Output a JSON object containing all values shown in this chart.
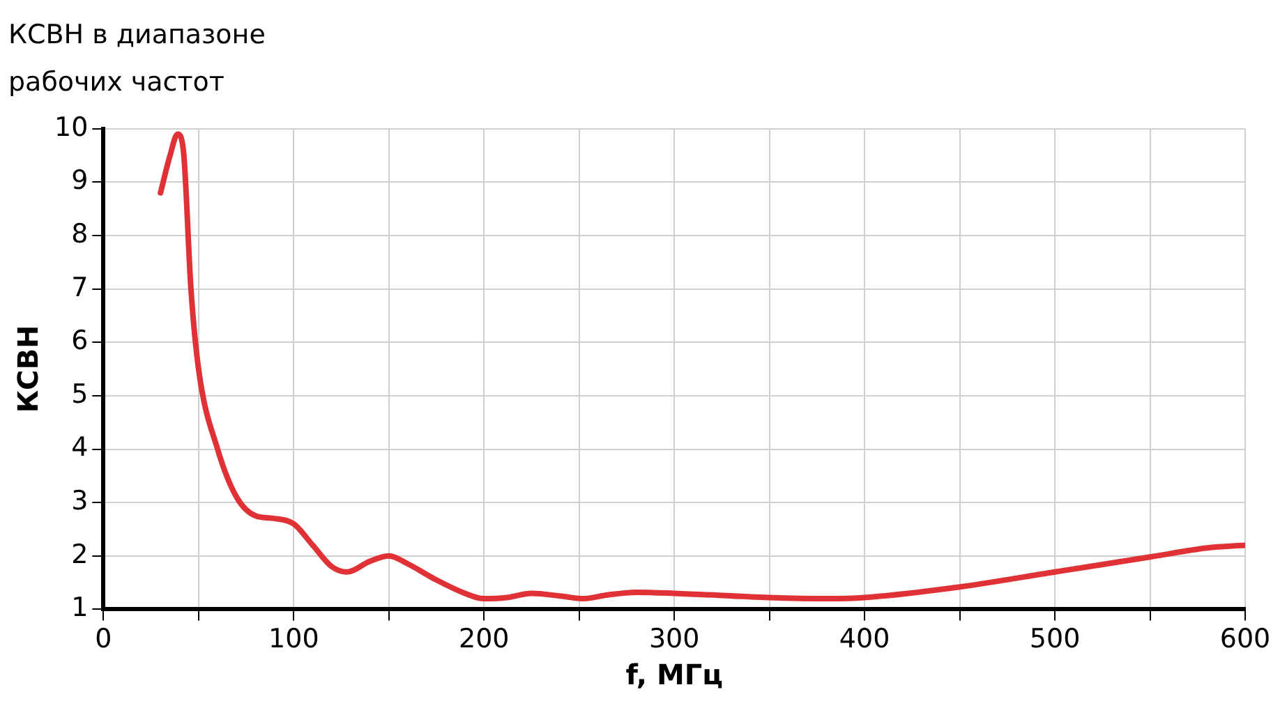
{
  "chart_data": {
    "type": "line",
    "title": "КСВН в диапазоне рабочих частот",
    "xlabel": "f, МГц",
    "ylabel": "КСВН",
    "x": [
      30,
      35,
      39,
      42,
      46,
      50,
      60,
      70,
      80,
      90,
      100,
      110,
      120,
      128,
      140,
      150,
      160,
      175,
      190,
      200,
      212,
      225,
      240,
      252,
      265,
      280,
      300,
      350,
      380,
      400,
      450,
      500,
      550,
      580,
      600
    ],
    "series": [
      {
        "color": "#e03236",
        "values": [
          8.8,
          9.5,
          9.9,
          9.6,
          7,
          5.5,
          4,
          3.1,
          2.75,
          2.7,
          2.6,
          2.2,
          1.8,
          1.7,
          1.9,
          2.0,
          1.85,
          1.55,
          1.3,
          1.2,
          1.22,
          1.3,
          1.25,
          1.2,
          1.27,
          1.32,
          1.3,
          1.22,
          1.2,
          1.22,
          1.42,
          1.7,
          1.98,
          2.15,
          2.2
        ]
      }
    ],
    "xlim": [
      0,
      600
    ],
    "xticks": [
      0,
      {
        "value": 50,
        "label": null
      },
      100,
      {
        "value": 150,
        "label": null
      },
      200,
      {
        "value": 250,
        "label": null
      },
      300,
      {
        "value": 350,
        "label": null
      },
      400,
      {
        "value": 450,
        "label": null
      },
      500,
      {
        "value": 550,
        "label": null
      },
      600
    ],
    "ylim": [
      1,
      10
    ],
    "yticks": [
      1,
      2,
      3,
      4,
      5,
      6,
      7,
      8,
      9,
      10
    ],
    "grid": true,
    "legend": false,
    "marker": "none",
    "line_style": "solid"
  }
}
